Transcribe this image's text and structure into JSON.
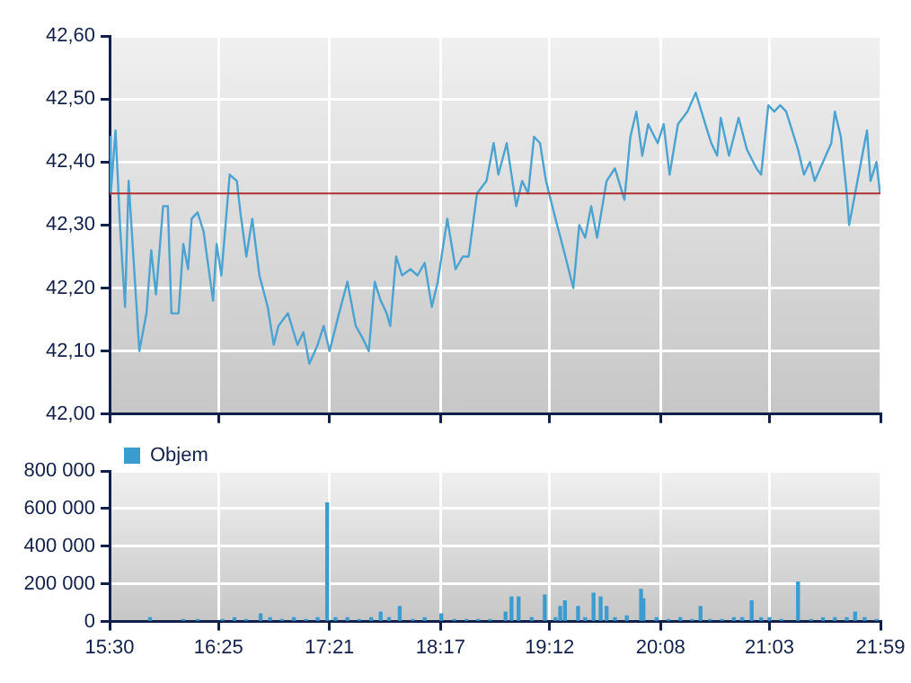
{
  "chart_data": [
    {
      "type": "line",
      "xlim": [
        15.5,
        21.9833
      ],
      "xticks": [
        {
          "value": 15.5,
          "label": null
        },
        {
          "value": 16.4167,
          "label": null
        },
        {
          "value": 17.35,
          "label": null
        },
        {
          "value": 18.2833,
          "label": null
        },
        {
          "value": 19.2,
          "label": null
        },
        {
          "value": 20.1333,
          "label": null
        },
        {
          "value": 21.05,
          "label": null
        },
        {
          "value": 21.9833,
          "label": null
        }
      ],
      "ylim": [
        42,
        42.6
      ],
      "yticks": [
        {
          "value": 42,
          "label": "42,00"
        },
        {
          "value": 42.1,
          "label": "42,10"
        },
        {
          "value": 42.2,
          "label": "42,20"
        },
        {
          "value": 42.3,
          "label": "42,30"
        },
        {
          "value": 42.4,
          "label": "42,40"
        },
        {
          "value": 42.5,
          "label": "42,50"
        },
        {
          "value": 42.6,
          "label": "42,60"
        }
      ],
      "grid": true,
      "tick_labels": "y",
      "legend": false,
      "ref_lines": [
        {
          "axis": "y",
          "value": 42.35,
          "color": "#b03030"
        }
      ],
      "series": [
        {
          "color": "#4aa3d0",
          "x": [
            15.5,
            15.51,
            15.55,
            15.59,
            15.63,
            15.66,
            15.7,
            15.75,
            15.81,
            15.85,
            15.89,
            15.95,
            15.99,
            16.02,
            16.08,
            16.12,
            16.16,
            16.19,
            16.24,
            16.29,
            16.37,
            16.4,
            16.44,
            16.51,
            16.57,
            16.6,
            16.65,
            16.7,
            16.76,
            16.83,
            16.88,
            16.92,
            17.0,
            17.08,
            17.13,
            17.18,
            17.25,
            17.3,
            17.35,
            17.43,
            17.5,
            17.57,
            17.63,
            17.68,
            17.73,
            17.78,
            17.83,
            17.86,
            17.91,
            17.96,
            18.03,
            18.09,
            18.15,
            18.21,
            18.26,
            18.34,
            18.41,
            18.47,
            18.52,
            18.59,
            18.67,
            18.73,
            18.77,
            18.84,
            18.92,
            18.97,
            19.02,
            19.07,
            19.12,
            19.17,
            19.25,
            19.32,
            19.4,
            19.45,
            19.5,
            19.55,
            19.6,
            19.68,
            19.75,
            19.83,
            19.88,
            19.93,
            19.98,
            20.03,
            20.11,
            20.16,
            20.21,
            20.28,
            20.36,
            20.43,
            20.51,
            20.56,
            20.61,
            20.64,
            20.71,
            20.79,
            20.86,
            20.94,
            20.98,
            21.04,
            21.09,
            21.14,
            21.19,
            21.24,
            21.29,
            21.34,
            21.39,
            21.43,
            21.5,
            21.57,
            21.6,
            21.65,
            21.7,
            21.72,
            21.77,
            21.82,
            21.87,
            21.9,
            21.95,
            21.98
          ],
          "values": [
            42.44,
            42.35,
            42.45,
            42.29,
            42.17,
            42.37,
            42.25,
            42.1,
            42.16,
            42.26,
            42.19,
            42.33,
            42.33,
            42.16,
            42.16,
            42.27,
            42.23,
            42.31,
            42.32,
            42.29,
            42.18,
            42.27,
            42.22,
            42.38,
            42.37,
            42.32,
            42.25,
            42.31,
            42.22,
            42.17,
            42.11,
            42.14,
            42.16,
            42.11,
            42.13,
            42.08,
            42.11,
            42.14,
            42.1,
            42.16,
            42.21,
            42.14,
            42.12,
            42.1,
            42.21,
            42.18,
            42.16,
            42.14,
            42.25,
            42.22,
            42.23,
            42.22,
            42.24,
            42.17,
            42.21,
            42.31,
            42.23,
            42.25,
            42.25,
            42.35,
            42.37,
            42.43,
            42.38,
            42.43,
            42.33,
            42.37,
            42.35,
            42.44,
            42.43,
            42.37,
            42.31,
            42.26,
            42.2,
            42.3,
            42.28,
            42.33,
            42.28,
            42.37,
            42.39,
            42.34,
            42.44,
            42.48,
            42.41,
            42.46,
            42.43,
            42.46,
            42.38,
            42.46,
            42.48,
            42.51,
            42.46,
            42.43,
            42.41,
            42.47,
            42.41,
            42.47,
            42.42,
            42.39,
            42.38,
            42.49,
            42.48,
            42.49,
            42.48,
            42.45,
            42.42,
            42.38,
            42.4,
            42.37,
            42.4,
            42.43,
            42.48,
            42.44,
            42.35,
            42.3,
            42.35,
            42.4,
            42.45,
            42.37,
            42.4,
            42.35
          ]
        }
      ]
    },
    {
      "type": "bar",
      "xlim": [
        15.5,
        21.9833
      ],
      "xticks": [
        {
          "value": 15.5,
          "label": "15:30"
        },
        {
          "value": 16.4167,
          "label": "16:25"
        },
        {
          "value": 17.35,
          "label": "17:21"
        },
        {
          "value": 18.2833,
          "label": "18:17"
        },
        {
          "value": 19.2,
          "label": "19:12"
        },
        {
          "value": 20.1333,
          "label": "20:08"
        },
        {
          "value": 21.05,
          "label": "21:03"
        },
        {
          "value": 21.9833,
          "label": "21:59"
        }
      ],
      "ylim": [
        0,
        800000
      ],
      "yticks": [
        {
          "value": 0,
          "label": "0"
        },
        {
          "value": 200000,
          "label": "200 000"
        },
        {
          "value": 400000,
          "label": "400 000"
        },
        {
          "value": 600000,
          "label": "600 000"
        },
        {
          "value": 800000,
          "label": "800 000"
        }
      ],
      "grid": true,
      "legend": "top left",
      "series": [
        {
          "name": "Objem",
          "color": "#3a9ccf",
          "x": [
            15.84,
            16.12,
            16.24,
            16.45,
            16.55,
            16.65,
            16.77,
            16.85,
            16.95,
            17.05,
            17.15,
            17.25,
            17.33,
            17.4,
            17.5,
            17.6,
            17.7,
            17.78,
            17.85,
            17.94,
            18.05,
            18.15,
            18.29,
            18.4,
            18.5,
            18.6,
            18.7,
            18.83,
            18.88,
            18.94,
            19.05,
            19.16,
            19.25,
            19.29,
            19.33,
            19.44,
            19.5,
            19.57,
            19.63,
            19.68,
            19.75,
            19.85,
            19.97,
            19.99,
            20.1,
            20.2,
            20.3,
            20.4,
            20.47,
            20.55,
            20.65,
            20.75,
            20.82,
            20.9,
            20.98,
            21.05,
            21.15,
            21.29,
            21.4,
            21.5,
            21.6,
            21.7,
            21.77,
            21.85,
            21.95
          ],
          "values": [
            20000,
            10000,
            10000,
            10000,
            20000,
            10000,
            40000,
            20000,
            10000,
            20000,
            10000,
            20000,
            630000,
            20000,
            20000,
            10000,
            20000,
            50000,
            20000,
            80000,
            10000,
            20000,
            40000,
            10000,
            10000,
            10000,
            10000,
            50000,
            130000,
            130000,
            20000,
            140000,
            20000,
            80000,
            110000,
            80000,
            20000,
            150000,
            130000,
            80000,
            20000,
            30000,
            170000,
            120000,
            20000,
            10000,
            20000,
            10000,
            80000,
            10000,
            10000,
            20000,
            20000,
            110000,
            20000,
            20000,
            10000,
            210000,
            10000,
            20000,
            20000,
            20000,
            50000,
            20000,
            10000
          ]
        }
      ]
    }
  ]
}
